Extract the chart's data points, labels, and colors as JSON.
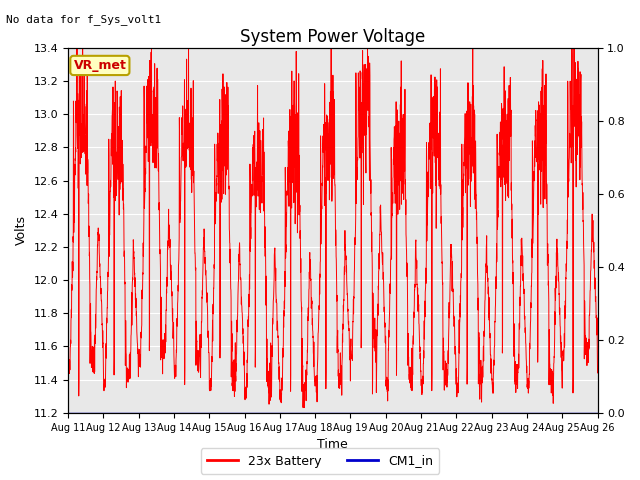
{
  "title": "System Power Voltage",
  "ylabel_left": "Volts",
  "xlabel": "Time",
  "ylim_left": [
    11.2,
    13.4
  ],
  "ylim_right": [
    0.0,
    1.0
  ],
  "yticks_left": [
    11.2,
    11.4,
    11.6,
    11.8,
    12.0,
    12.2,
    12.4,
    12.6,
    12.8,
    13.0,
    13.2,
    13.4
  ],
  "yticks_right": [
    0.0,
    0.2,
    0.4,
    0.6,
    0.8,
    1.0
  ],
  "no_data_text": "No data for f_Sys_volt1",
  "vr_met_label": "VR_met",
  "legend_entries": [
    "23x Battery",
    "CM1_in"
  ],
  "line_color_battery": "#ff0000",
  "line_color_cm1": "#0000cc",
  "background_color": "#ffffff",
  "plot_bg_color": "#e8e8e8",
  "grid_color": "#ffffff",
  "title_fontsize": 12,
  "axis_label_fontsize": 9,
  "tick_fontsize": 8
}
